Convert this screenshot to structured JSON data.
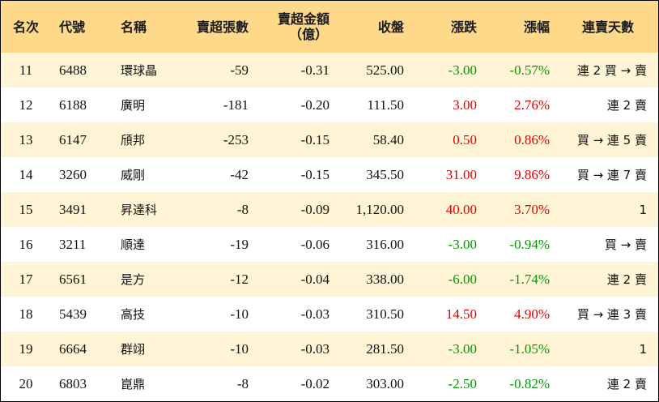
{
  "colors": {
    "header_bg": "#ffd98a",
    "odd_row_bg": "#fff5d6",
    "up": "#e00000",
    "down": "#009a00"
  },
  "header": {
    "rank": "名次",
    "code": "代號",
    "name": "名稱",
    "net_sell_shares": "賣超張數",
    "net_sell_amount": "賣超金額",
    "net_sell_amount_unit": "（億）",
    "close": "收盤",
    "change": "漲跌",
    "change_pct": "漲幅",
    "streak": "連賣天數"
  },
  "rows": [
    {
      "rank": "11",
      "code": "6488",
      "name": "環球晶",
      "shares": "-59",
      "amount": "-0.31",
      "close": "525.00",
      "change": "-3.00",
      "pct": "-0.57%",
      "dir": "down",
      "streak": "連 2 買 → 賣"
    },
    {
      "rank": "12",
      "code": "6188",
      "name": "廣明",
      "shares": "-181",
      "amount": "-0.20",
      "close": "111.50",
      "change": "3.00",
      "pct": "2.76%",
      "dir": "up",
      "streak": "連 2 賣"
    },
    {
      "rank": "13",
      "code": "6147",
      "name": "頎邦",
      "shares": "-253",
      "amount": "-0.15",
      "close": "58.40",
      "change": "0.50",
      "pct": "0.86%",
      "dir": "up",
      "streak": "買 → 連 5 賣"
    },
    {
      "rank": "14",
      "code": "3260",
      "name": "威剛",
      "shares": "-42",
      "amount": "-0.15",
      "close": "345.50",
      "change": "31.00",
      "pct": "9.86%",
      "dir": "up",
      "streak": "買 → 連 7 賣"
    },
    {
      "rank": "15",
      "code": "3491",
      "name": "昇達科",
      "shares": "-8",
      "amount": "-0.09",
      "close": "1,120.00",
      "change": "40.00",
      "pct": "3.70%",
      "dir": "up",
      "streak": "1"
    },
    {
      "rank": "16",
      "code": "3211",
      "name": "順達",
      "shares": "-19",
      "amount": "-0.06",
      "close": "316.00",
      "change": "-3.00",
      "pct": "-0.94%",
      "dir": "down",
      "streak": "買 → 賣"
    },
    {
      "rank": "17",
      "code": "6561",
      "name": "是方",
      "shares": "-12",
      "amount": "-0.04",
      "close": "338.00",
      "change": "-6.00",
      "pct": "-1.74%",
      "dir": "down",
      "streak": "連 2 賣"
    },
    {
      "rank": "18",
      "code": "5439",
      "name": "高技",
      "shares": "-10",
      "amount": "-0.03",
      "close": "310.50",
      "change": "14.50",
      "pct": "4.90%",
      "dir": "up",
      "streak": "買 → 連 3 賣"
    },
    {
      "rank": "19",
      "code": "6664",
      "name": "群翊",
      "shares": "-10",
      "amount": "-0.03",
      "close": "281.50",
      "change": "-3.00",
      "pct": "-1.05%",
      "dir": "down",
      "streak": "1"
    },
    {
      "rank": "20",
      "code": "6803",
      "name": "崑鼎",
      "shares": "-8",
      "amount": "-0.02",
      "close": "303.00",
      "change": "-2.50",
      "pct": "-0.82%",
      "dir": "down",
      "streak": "連 2 賣"
    }
  ]
}
